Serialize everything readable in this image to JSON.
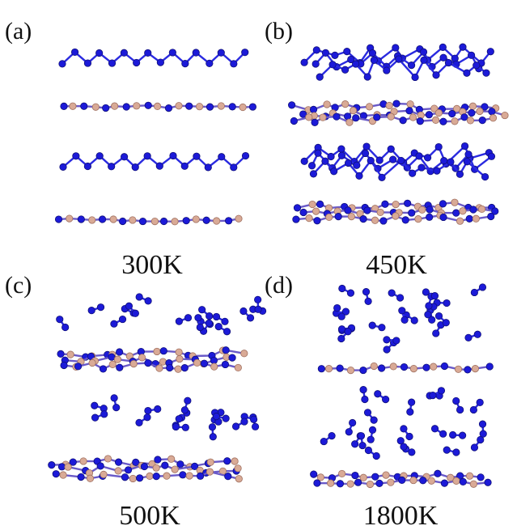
{
  "panels": [
    {
      "label": "(a)",
      "temperature": "300K"
    },
    {
      "label": "(b)",
      "temperature": "450K"
    },
    {
      "label": "(c)",
      "temperature": "500K"
    },
    {
      "label": "(d)",
      "temperature": "1800K"
    }
  ]
}
